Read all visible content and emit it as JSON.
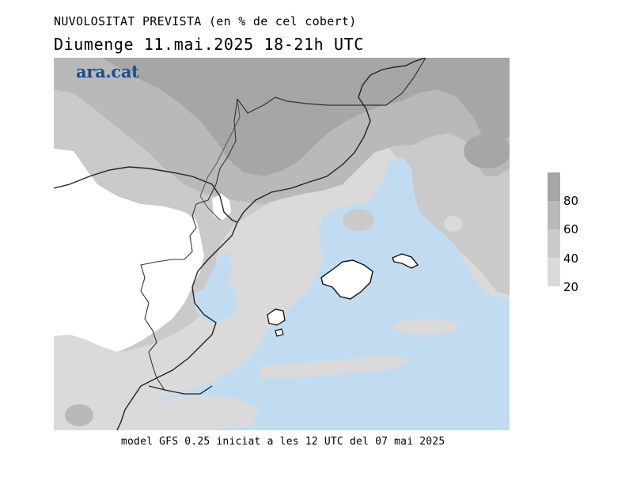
{
  "title": "NUVOLOSITAT PREVISTA (en % de cel cobert)",
  "subtitle": "Diumenge  11.mai.2025 18-21h UTC",
  "logo": "ara.cat",
  "footer": "model GFS 0.25 iniciat a les 12 UTC del 07 mai 2025",
  "legend": {
    "labels": [
      "80",
      "60",
      "40",
      "20"
    ],
    "colors": {
      "above_80": "#a6a6a6",
      "60_80": "#b9b9b9",
      "40_60": "#cacaca",
      "20_40": "#dadada",
      "below_20": "#c1dcf0",
      "land_clear": "#ffffff"
    }
  }
}
